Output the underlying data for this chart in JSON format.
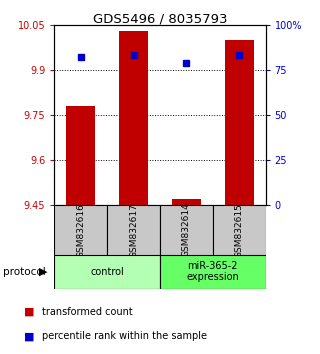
{
  "title": "GDS5496 / 8035793",
  "samples": [
    "GSM832616",
    "GSM832617",
    "GSM832614",
    "GSM832615"
  ],
  "red_values": [
    9.78,
    10.03,
    9.47,
    10.0
  ],
  "blue_values": [
    82,
    83,
    79,
    83
  ],
  "y_min": 9.45,
  "y_max": 10.05,
  "y_ticks_left": [
    9.45,
    9.6,
    9.75,
    9.9,
    10.05
  ],
  "y_ticks_right": [
    0,
    25,
    50,
    75,
    100
  ],
  "right_y_labels": [
    "0",
    "25",
    "50",
    "75",
    "100%"
  ],
  "bar_color": "#c00000",
  "dot_color": "#0000cc",
  "protocol_groups": [
    {
      "label": "control",
      "indices": [
        0,
        1
      ],
      "color": "#b3ffb3"
    },
    {
      "label": "miR-365-2\nexpression",
      "indices": [
        2,
        3
      ],
      "color": "#66ff66"
    }
  ],
  "legend_red": "transformed count",
  "legend_blue": "percentile rank within the sample",
  "protocol_label": "protocol",
  "gray_bg": "#c8c8c8",
  "plot_bg": "#ffffff",
  "grid_lines": [
    9.6,
    9.75,
    9.9
  ]
}
